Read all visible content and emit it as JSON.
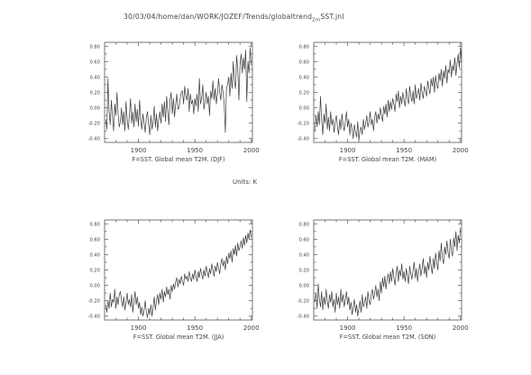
{
  "header": {
    "path_prefix": "30/03/04/home/dan/WORK/JOZEF/Trends/globaltrend",
    "path_sub": "2m",
    "path_suffix": "SST.jnl"
  },
  "units": "Units: K",
  "chart_data": [
    {
      "type": "line",
      "xlabel": "F=SST. Global mean T2M. (DJF)",
      "xlim": [
        1870,
        2001
      ],
      "ylim": [
        -0.45,
        0.85
      ],
      "x_ticks": [
        1900,
        1950,
        2000
      ],
      "y_ticks": [
        -0.4,
        -0.2,
        0.0,
        0.2,
        0.4,
        0.6,
        0.8
      ],
      "y_tick_labels": [
        "-0.40",
        "-0.20",
        "0.00",
        "0.20",
        "0.40",
        "0.60",
        "0.80"
      ],
      "x_start": 1871,
      "values": [
        -0.15,
        -0.28,
        0.38,
        -0.05,
        -0.22,
        0.1,
        -0.12,
        -0.3,
        0.05,
        -0.1,
        0.2,
        -0.08,
        -0.25,
        -0.18,
        0.0,
        -0.22,
        -0.05,
        -0.3,
        0.08,
        -0.15,
        -0.28,
        -0.1,
        0.12,
        -0.2,
        -0.05,
        -0.25,
        0.05,
        -0.18,
        -0.02,
        -0.24,
        0.1,
        -0.15,
        -0.28,
        -0.08,
        -0.2,
        -0.32,
        -0.12,
        -0.05,
        -0.22,
        -0.35,
        -0.1,
        -0.28,
        -0.18,
        0.02,
        -0.25,
        -0.08,
        -0.3,
        -0.15,
        -0.05,
        -0.2,
        0.05,
        -0.12,
        0.08,
        -0.18,
        0.15,
        -0.05,
        -0.22,
        0.1,
        0.2,
        -0.08,
        0.12,
        -0.12,
        0.05,
        0.18,
        -0.02,
        0.0,
        0.12,
        0.2,
        0.22,
        0.05,
        0.28,
        0.15,
        0.1,
        0.25,
        -0.05,
        0.18,
        0.05,
        0.1,
        -0.08,
        0.12,
        0.02,
        0.18,
        -0.05,
        0.38,
        0.05,
        0.12,
        0.3,
        -0.02,
        0.08,
        0.2,
        0.05,
        0.15,
        -0.1,
        0.22,
        0.12,
        0.35,
        0.1,
        0.25,
        0.05,
        0.18,
        0.38,
        0.2,
        0.1,
        0.3,
        0.2,
        0.05,
        -0.32,
        0.25,
        0.3,
        0.4,
        0.15,
        0.45,
        0.25,
        0.6,
        0.35,
        0.25,
        0.68,
        0.5,
        0.1,
        0.55,
        0.7,
        0.45,
        0.65,
        0.5,
        0.75,
        0.08,
        0.6,
        0.45,
        0.78,
        0.55
      ]
    },
    {
      "type": "line",
      "xlabel": "F=SST. Global mean T2M. (MAM)",
      "xlim": [
        1870,
        2001
      ],
      "ylim": [
        -0.45,
        0.85
      ],
      "x_ticks": [
        1900,
        1950,
        2000
      ],
      "y_ticks": [
        -0.4,
        -0.2,
        0.0,
        0.2,
        0.4,
        0.6,
        0.8
      ],
      "y_tick_labels": [
        "-0.40",
        "-0.20",
        "0.00",
        "0.20",
        "0.40",
        "0.60",
        "0.80"
      ],
      "x_start": 1871,
      "values": [
        -0.3,
        -0.1,
        -0.25,
        -0.05,
        -0.22,
        0.15,
        -0.15,
        -0.35,
        -0.08,
        -0.2,
        0.05,
        -0.28,
        -0.12,
        -0.3,
        -0.05,
        -0.22,
        -0.15,
        -0.32,
        -0.18,
        -0.1,
        -0.25,
        -0.35,
        -0.15,
        -0.28,
        -0.08,
        -0.22,
        -0.3,
        -0.18,
        -0.05,
        -0.25,
        -0.15,
        -0.35,
        -0.2,
        -0.28,
        -0.4,
        -0.22,
        -0.32,
        -0.38,
        -0.18,
        -0.42,
        -0.3,
        -0.25,
        -0.35,
        -0.15,
        -0.28,
        -0.2,
        -0.1,
        -0.25,
        -0.18,
        -0.05,
        -0.22,
        -0.15,
        -0.3,
        -0.12,
        -0.05,
        -0.2,
        -0.08,
        -0.15,
        0.0,
        -0.1,
        -0.18,
        0.02,
        -0.08,
        0.05,
        -0.12,
        0.1,
        -0.05,
        0.08,
        -0.02,
        0.12,
        0.05,
        -0.05,
        0.18,
        0.08,
        0.22,
        0.0,
        0.15,
        0.05,
        0.2,
        0.1,
        0.02,
        0.25,
        0.12,
        0.05,
        0.28,
        0.15,
        0.08,
        0.22,
        0.05,
        0.3,
        0.12,
        0.18,
        0.25,
        0.1,
        0.32,
        0.2,
        0.12,
        0.28,
        0.22,
        0.15,
        0.35,
        0.25,
        0.18,
        0.38,
        0.28,
        0.4,
        0.2,
        0.42,
        0.3,
        0.25,
        0.45,
        0.35,
        0.5,
        0.28,
        0.48,
        0.38,
        0.55,
        0.32,
        0.5,
        0.45,
        0.62,
        0.4,
        0.55,
        0.48,
        0.65,
        0.42,
        0.58,
        0.7,
        0.52,
        0.78,
        0.6
      ]
    },
    {
      "type": "line",
      "xlabel": "F=SST. Global mean T2M. (JJA)",
      "xlim": [
        1870,
        2001
      ],
      "ylim": [
        -0.45,
        0.85
      ],
      "x_ticks": [
        1900,
        1950,
        2000
      ],
      "y_ticks": [
        -0.4,
        -0.2,
        0.0,
        0.2,
        0.4,
        0.6,
        0.8
      ],
      "y_tick_labels": [
        "-0.40",
        "-0.20",
        "0.00",
        "0.20",
        "0.40",
        "0.60",
        "0.80"
      ],
      "x_start": 1871,
      "values": [
        -0.25,
        -0.35,
        -0.2,
        -0.3,
        -0.1,
        -0.28,
        -0.18,
        -0.22,
        -0.05,
        -0.3,
        -0.15,
        -0.25,
        -0.12,
        -0.08,
        -0.2,
        -0.28,
        -0.15,
        -0.32,
        -0.22,
        -0.1,
        -0.25,
        -0.18,
        -0.28,
        -0.12,
        -0.35,
        -0.2,
        -0.08,
        -0.25,
        -0.15,
        -0.3,
        -0.22,
        -0.38,
        -0.28,
        -0.4,
        -0.32,
        -0.2,
        -0.35,
        -0.42,
        -0.3,
        -0.38,
        -0.25,
        -0.4,
        -0.28,
        -0.15,
        -0.32,
        -0.2,
        -0.12,
        -0.25,
        -0.1,
        -0.18,
        -0.05,
        -0.22,
        -0.08,
        -0.15,
        -0.02,
        -0.12,
        -0.05,
        -0.18,
        0.0,
        -0.08,
        0.02,
        -0.05,
        0.05,
        0.1,
        -0.02,
        0.08,
        0.02,
        0.12,
        0.05,
        0.0,
        0.15,
        0.08,
        0.12,
        0.05,
        0.18,
        0.1,
        0.05,
        0.15,
        0.08,
        0.2,
        0.12,
        0.05,
        0.18,
        0.1,
        0.22,
        0.15,
        0.08,
        0.2,
        0.12,
        0.25,
        0.18,
        0.1,
        0.22,
        0.15,
        0.28,
        0.2,
        0.12,
        0.25,
        0.18,
        0.3,
        0.22,
        0.15,
        0.28,
        0.35,
        0.25,
        0.32,
        0.2,
        0.38,
        0.28,
        0.42,
        0.35,
        0.45,
        0.3,
        0.48,
        0.4,
        0.52,
        0.38,
        0.55,
        0.45,
        0.5,
        0.58,
        0.48,
        0.62,
        0.52,
        0.65,
        0.55,
        0.68,
        0.6,
        0.72,
        0.62
      ]
    },
    {
      "type": "line",
      "xlabel": "F=SST. Global mean T2M. (SON)",
      "xlim": [
        1870,
        2001
      ],
      "ylim": [
        -0.45,
        0.85
      ],
      "x_ticks": [
        1900,
        1950,
        2000
      ],
      "y_ticks": [
        -0.4,
        -0.2,
        0.0,
        0.2,
        0.4,
        0.6,
        0.8
      ],
      "y_tick_labels": [
        "-0.40",
        "-0.20",
        "0.00",
        "0.20",
        "0.40",
        "0.60",
        "0.80"
      ],
      "x_start": 1871,
      "values": [
        -0.22,
        -0.1,
        -0.3,
        0.02,
        -0.18,
        -0.28,
        -0.08,
        -0.32,
        -0.15,
        -0.25,
        -0.05,
        -0.2,
        -0.3,
        -0.12,
        -0.22,
        -0.08,
        -0.28,
        -0.18,
        -0.35,
        -0.1,
        -0.25,
        -0.15,
        -0.3,
        -0.05,
        -0.22,
        -0.12,
        -0.28,
        -0.18,
        -0.08,
        -0.25,
        -0.15,
        -0.32,
        -0.22,
        -0.38,
        -0.28,
        -0.18,
        -0.35,
        -0.25,
        -0.4,
        -0.3,
        -0.2,
        -0.35,
        -0.12,
        -0.28,
        -0.22,
        -0.15,
        -0.3,
        -0.08,
        -0.2,
        -0.25,
        -0.12,
        -0.05,
        -0.18,
        -0.1,
        0.0,
        -0.15,
        -0.05,
        -0.2,
        0.05,
        -0.1,
        0.1,
        -0.02,
        0.12,
        -0.05,
        0.08,
        0.15,
        0.02,
        0.18,
        0.05,
        0.22,
        0.1,
        0.0,
        0.15,
        0.25,
        0.05,
        0.2,
        0.12,
        0.28,
        0.08,
        0.18,
        0.05,
        0.22,
        0.12,
        0.02,
        0.25,
        0.15,
        0.08,
        0.2,
        0.3,
        0.1,
        0.22,
        0.05,
        0.18,
        0.28,
        0.12,
        0.22,
        0.35,
        0.15,
        0.25,
        0.1,
        0.3,
        0.2,
        0.38,
        0.25,
        0.15,
        0.35,
        0.22,
        0.42,
        0.3,
        0.2,
        0.45,
        0.32,
        0.55,
        0.35,
        0.28,
        0.5,
        0.4,
        0.58,
        0.42,
        0.35,
        0.6,
        0.45,
        0.38,
        0.62,
        0.5,
        0.7,
        0.45,
        0.65,
        0.55,
        0.75
      ]
    }
  ]
}
